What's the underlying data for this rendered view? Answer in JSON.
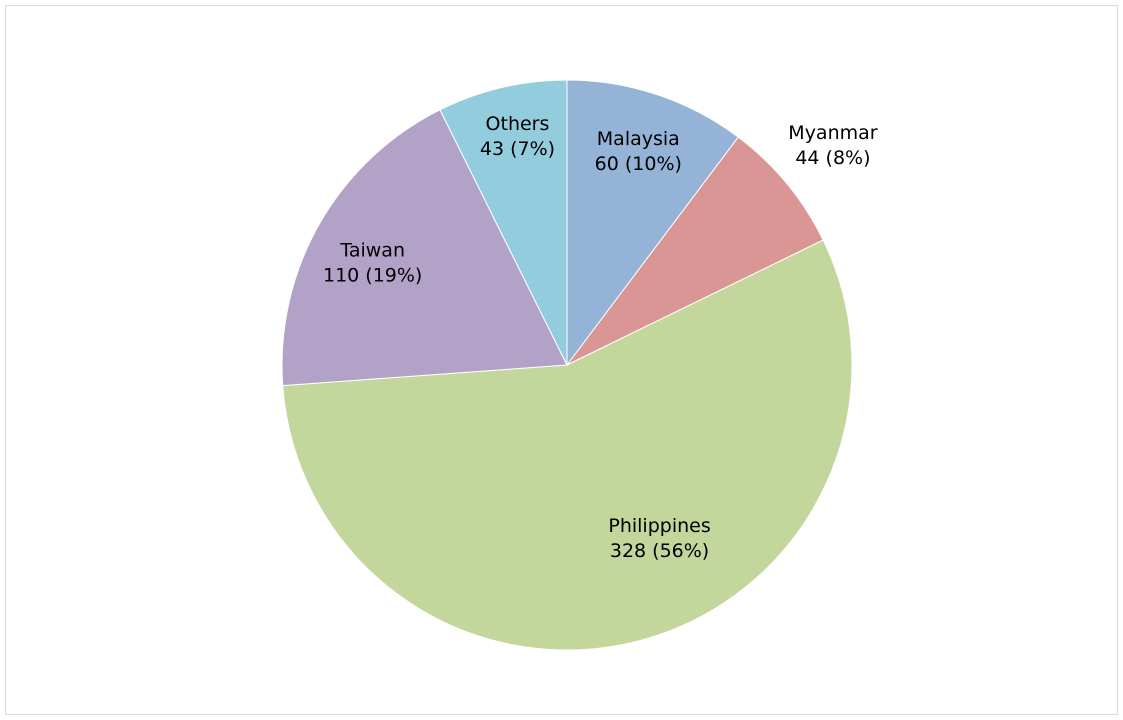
{
  "chart_data": {
    "type": "pie",
    "categories": [
      "Malaysia",
      "Myanmar",
      "Philippines",
      "Taiwan",
      "Others"
    ],
    "values": [
      60,
      44,
      328,
      110,
      43
    ],
    "value_labels": [
      "60 (10%)",
      "44 (8%)",
      "328 (56%)",
      "110 (19%)",
      "43 (7%)"
    ],
    "colors": [
      "#95b3d7",
      "#d99694",
      "#c3d69b",
      "#b2a2c7",
      "#93cddd"
    ]
  }
}
